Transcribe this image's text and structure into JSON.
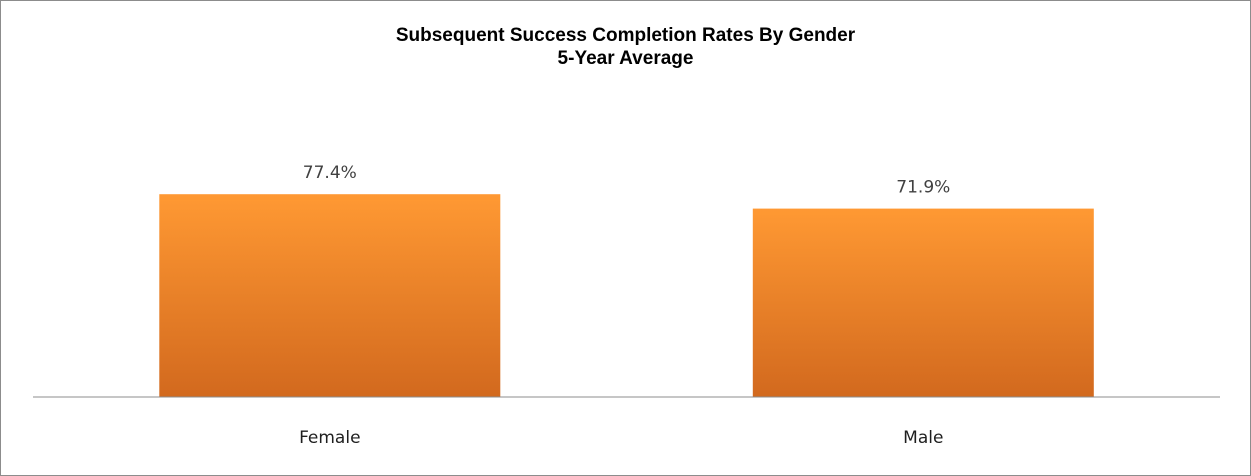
{
  "chart_data": {
    "type": "bar",
    "title": "Subsequent Success Completion Rates By Gender",
    "subtitle": "5-Year Average",
    "categories": [
      "Female",
      "Male"
    ],
    "values": [
      77.4,
      71.9
    ],
    "data_labels": [
      "77.4%",
      "71.9%"
    ],
    "ylim": [
      0,
      100
    ],
    "grid": false,
    "legend": "none",
    "colors": {
      "bar_top": "#FF9933",
      "bar_bottom": "#D2691E",
      "axis": "#8c8c8c"
    }
  }
}
